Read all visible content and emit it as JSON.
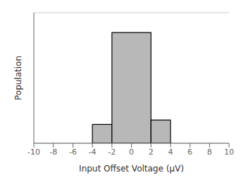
{
  "chart_data": {
    "type": "histogram",
    "xlabel": "Input Offset Voltage (μV)",
    "ylabel": "Population",
    "bins": [
      -4,
      -2,
      2,
      4
    ],
    "values": [
      0.17,
      1.0,
      0.21
    ],
    "color": "#b8b8b8",
    "xlim": [
      -10,
      10
    ],
    "xticks": [
      -10,
      -8,
      -6,
      -4,
      -2,
      0,
      2,
      4,
      6,
      8,
      10
    ],
    "ylim": [
      0,
      1.18
    ],
    "yticks": [
      0,
      0.1311111111,
      0.2622222222,
      0.3933333333,
      0.5244444444,
      0.6555555556,
      0.7866666667,
      0.9177777778,
      1.0488888889,
      1.18
    ],
    "grid": true,
    "tick_labels": "x"
  }
}
